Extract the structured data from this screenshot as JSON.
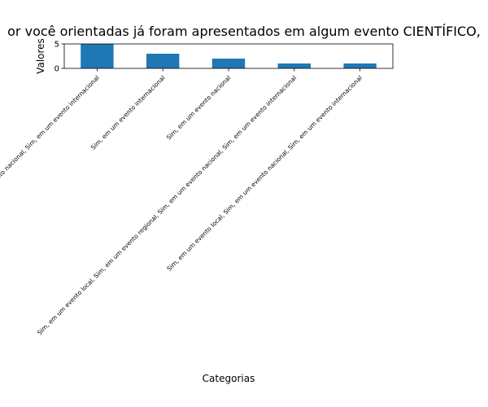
{
  "chart_data": {
    "type": "bar",
    "title": "or você orientadas já foram apresentados em algum evento CIENTÍFICO,",
    "xlabel": "Categorias",
    "ylabel": "Valores",
    "categories": [
      "Sim, em um evento nacional, Sim, em um evento internacional",
      "Sim, em um evento internacional",
      "Sim, em um evento nacional",
      "Sim, em um evento local, Sim, em um evento regional, Sim, em um evento nacional, Sim, em um evento internacional",
      "Sim, em um evento local, Sim, em um evento nacional, Sim, em um evento internacional"
    ],
    "values": [
      5,
      3,
      2,
      1,
      1
    ],
    "ylim": [
      0,
      5
    ],
    "yticks": [
      0,
      5
    ],
    "bar_color": "#1f77b4",
    "grid": false,
    "legend": "none"
  }
}
